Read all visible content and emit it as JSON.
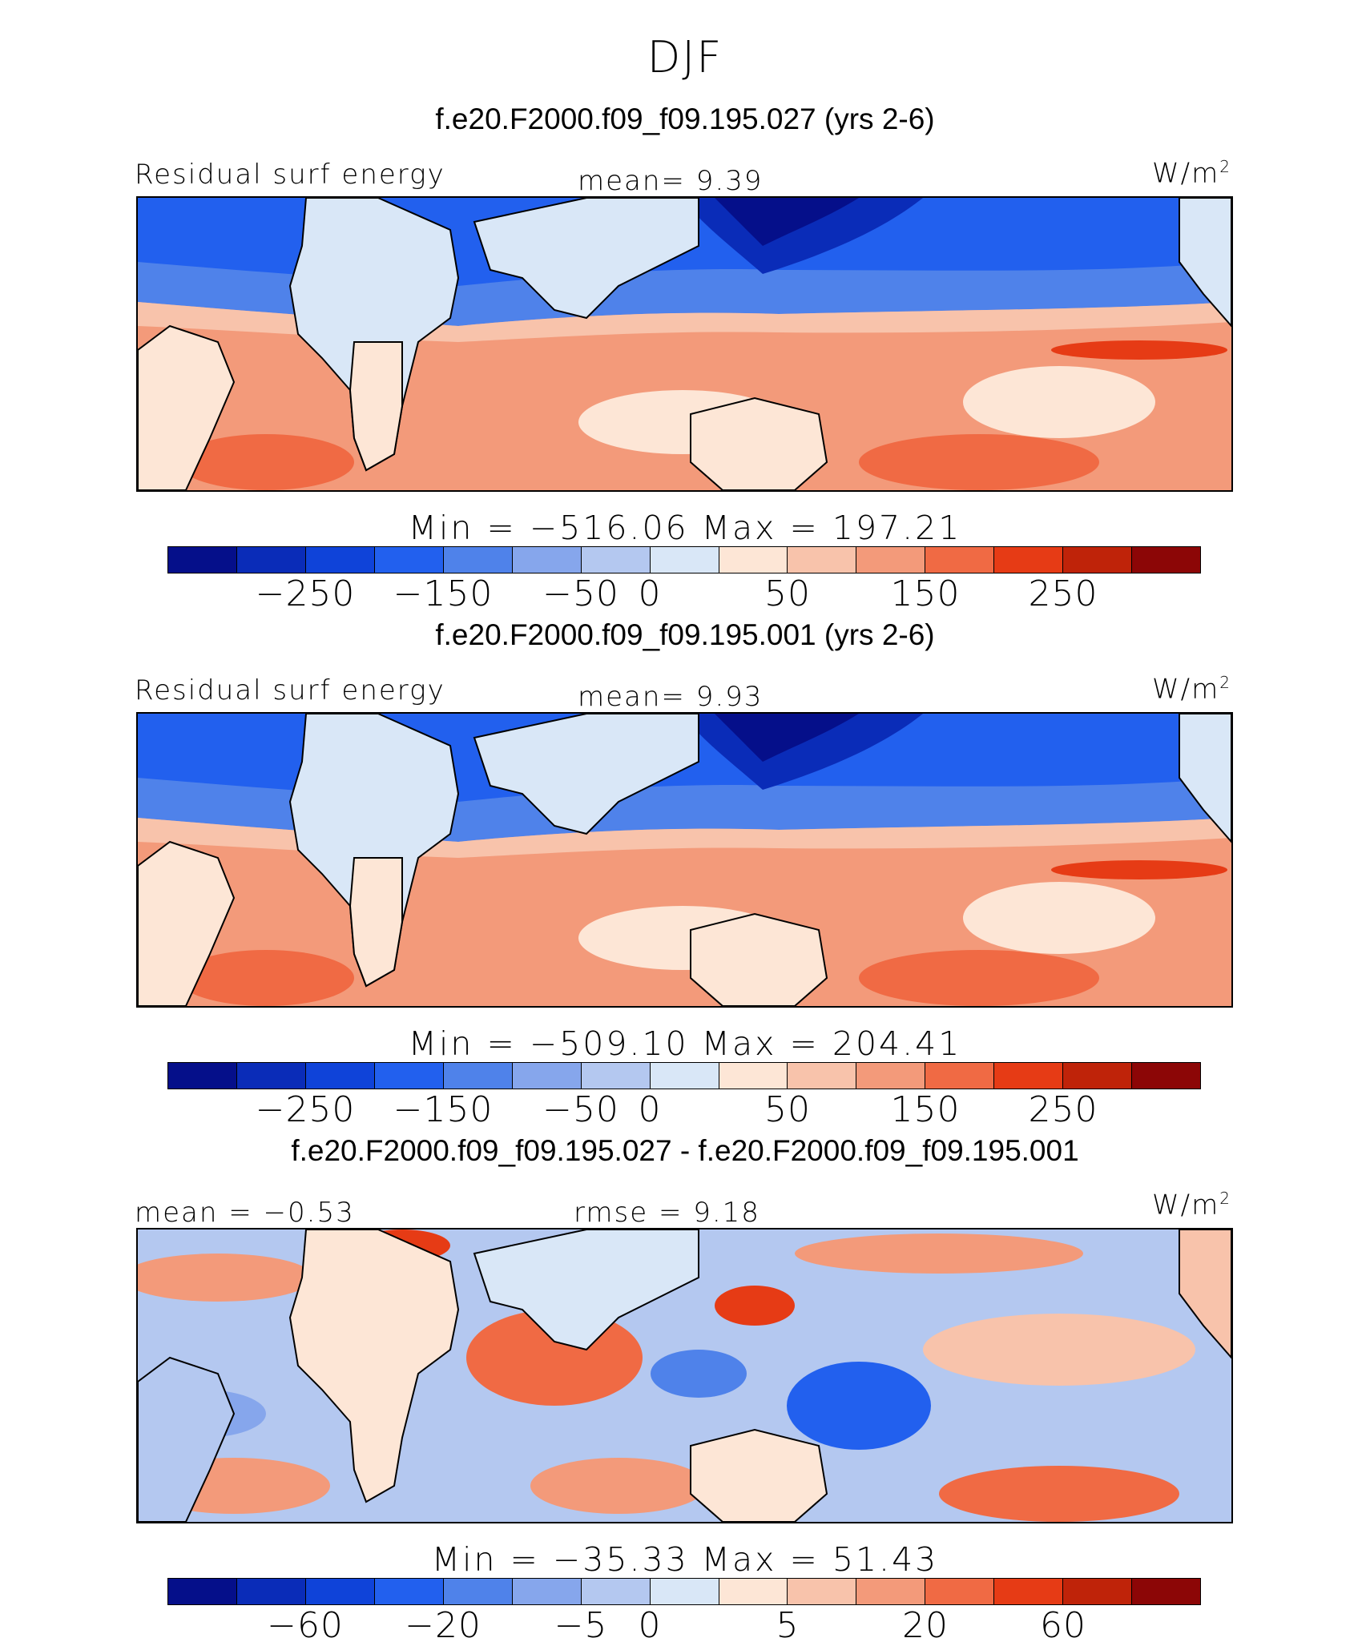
{
  "title": "DJF",
  "units": "W/m",
  "units_sup": "2",
  "chart_data": [
    {
      "type": "heatmap",
      "title": "f.e20.F2000.f09_f09.195.027 (yrs 2-6)",
      "left_label": "Residual surf energy",
      "center_label": "mean=    9.39",
      "stats": "Min = −516.06 Max = 197.21",
      "colorbar_ticks": [
        "−250",
        "−150",
        "−50",
        "0",
        "50",
        "150",
        "250"
      ],
      "colorbar_levels": [
        -300,
        -250,
        -200,
        -150,
        -100,
        -50,
        -25,
        0,
        25,
        50,
        100,
        150,
        200,
        250,
        300
      ],
      "mean": 9.39,
      "min": -516.06,
      "max": 197.21
    },
    {
      "type": "heatmap",
      "title": "f.e20.F2000.f09_f09.195.001 (yrs 2-6)",
      "left_label": "Residual surf energy",
      "center_label": "mean=    9.93",
      "stats": "Min = −509.10 Max = 204.41",
      "colorbar_ticks": [
        "−250",
        "−150",
        "−50",
        "0",
        "50",
        "150",
        "250"
      ],
      "colorbar_levels": [
        -300,
        -250,
        -200,
        -150,
        -100,
        -50,
        -25,
        0,
        25,
        50,
        100,
        150,
        200,
        250,
        300
      ],
      "mean": 9.93,
      "min": -509.1,
      "max": 204.41
    },
    {
      "type": "heatmap",
      "title": "f.e20.F2000.f09_f09.195.027 - f.e20.F2000.f09_f09.195.001",
      "left_label": "mean =   −0.53",
      "center_label": "rmse =    9.18",
      "stats": "Min = −35.33 Max =   51.43",
      "colorbar_ticks": [
        "−60",
        "−20",
        "−5",
        "0",
        "5",
        "20",
        "60"
      ],
      "colorbar_levels": [
        -80,
        -60,
        -40,
        -20,
        -10,
        -5,
        -2,
        0,
        2,
        5,
        10,
        20,
        40,
        60,
        80
      ],
      "mean": -0.53,
      "rmse": 9.18,
      "min": -35.33,
      "max": 51.43
    }
  ],
  "colors": [
    "#050f8a",
    "#0a2cb8",
    "#0f43d9",
    "#2260ee",
    "#4f82ea",
    "#86a6ec",
    "#b4c8f0",
    "#d9e7f7",
    "#fde6d6",
    "#f8c3ab",
    "#f39a7a",
    "#f06a44",
    "#e63b15",
    "#bf2309",
    "#8c0606"
  ]
}
